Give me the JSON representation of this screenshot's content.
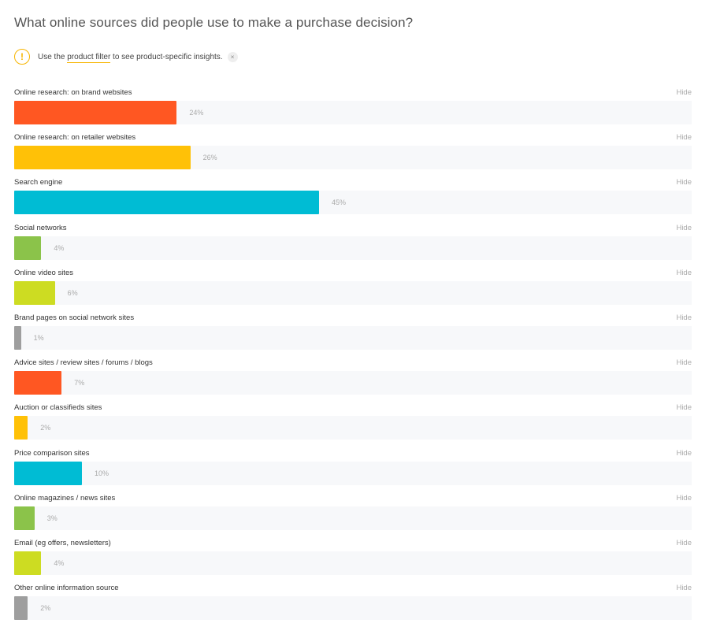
{
  "header": {
    "title": "What online sources did people use to make a purchase decision?"
  },
  "notice": {
    "icon": "warning-icon",
    "text_before": "Use the ",
    "link_label": "product filter",
    "text_after": " to see product-specific insights.",
    "dismiss_symbol": "×"
  },
  "hide_label": "Hide",
  "chart_data": {
    "type": "bar",
    "orientation": "horizontal",
    "xlim": [
      0,
      100
    ],
    "value_suffix": "%",
    "categories": [
      "Online research: on brand websites",
      "Online research: on retailer websites",
      "Search engine",
      "Social networks",
      "Online video sites",
      "Brand pages on social network sites",
      "Advice sites / review sites / forums / blogs",
      "Auction or classifieds sites",
      "Price comparison sites",
      "Online magazines / news sites",
      "Email (eg offers, newsletters)",
      "Other online information source"
    ],
    "values": [
      24,
      26,
      45,
      4,
      6,
      1,
      7,
      2,
      10,
      3,
      4,
      2
    ],
    "colors": [
      "#ff5722",
      "#ffc107",
      "#00bcd4",
      "#8bc34a",
      "#cddc22",
      "#9e9e9e",
      "#ff5722",
      "#ffc107",
      "#00bcd4",
      "#8bc34a",
      "#cddc22",
      "#9e9e9e"
    ]
  }
}
